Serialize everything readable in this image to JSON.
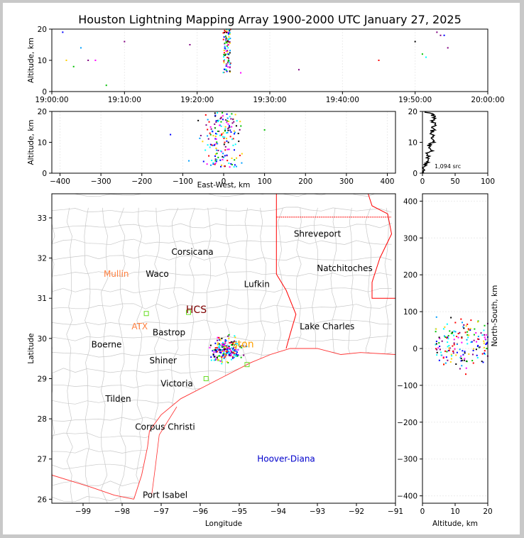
{
  "title": "Houston Lightning Mapping Array 1900-2000 UTC January 27, 2025",
  "chart_data": [
    {
      "id": "time_altitude",
      "type": "scatter",
      "ylabel": "Altitude, km",
      "xlabel": "",
      "xlim_minutes": [
        0,
        60
      ],
      "xtick_labels": [
        "19:00:00",
        "19:10:00",
        "19:20:00",
        "19:30:00",
        "19:40:00",
        "19:50:00",
        "20:00:00"
      ],
      "xtick_values": [
        0,
        10,
        20,
        30,
        40,
        50,
        60
      ],
      "ylim": [
        0,
        20
      ],
      "yticks": [
        0,
        10,
        20
      ],
      "sparse_points": [
        [
          1.5,
          19
        ],
        [
          2,
          10
        ],
        [
          3,
          8
        ],
        [
          4,
          14
        ],
        [
          5,
          10
        ],
        [
          6,
          10
        ],
        [
          7.5,
          2
        ],
        [
          10,
          16
        ],
        [
          19,
          15
        ],
        [
          26,
          6
        ],
        [
          34,
          7
        ],
        [
          45,
          10
        ],
        [
          50,
          16
        ],
        [
          51,
          12
        ],
        [
          51.5,
          11
        ],
        [
          53,
          19
        ],
        [
          53.5,
          18
        ],
        [
          54,
          18
        ],
        [
          54.5,
          14
        ]
      ],
      "cluster": {
        "minute_range": [
          23.6,
          24.6
        ],
        "alt_range": [
          6,
          20
        ]
      }
    },
    {
      "id": "east_west_altitude",
      "type": "scatter",
      "xlabel": "East-West, km",
      "ylabel": "Altitude, km",
      "xlim": [
        -420,
        420
      ],
      "xticks": [
        -400,
        -300,
        -200,
        -100,
        0,
        100,
        200,
        300,
        400
      ],
      "ylim": [
        0,
        20
      ],
      "yticks": [
        0,
        10,
        20
      ],
      "cluster": {
        "x_range": [
          -70,
          60
        ],
        "alt_range": [
          2,
          20
        ]
      }
    },
    {
      "id": "altitude_histogram",
      "type": "line",
      "xlim": [
        0,
        100
      ],
      "xticks": [
        0,
        50,
        100
      ],
      "ylim": [
        0,
        20
      ],
      "yticks": [
        0,
        10,
        20
      ],
      "annotation": "1,094 src",
      "alt": [
        0,
        1,
        2,
        3,
        4,
        5,
        6,
        7,
        8,
        9,
        10,
        11,
        12,
        13,
        14,
        15,
        16,
        17,
        18,
        19,
        20
      ],
      "count": [
        0,
        2,
        3,
        5,
        8,
        10,
        6,
        12,
        14,
        9,
        16,
        13,
        18,
        11,
        17,
        15,
        19,
        14,
        18,
        16,
        4
      ]
    },
    {
      "id": "plan_view",
      "type": "map",
      "xlabel": "Longitude",
      "ylabel": "Latitude",
      "xlim": [
        -99.8,
        -91
      ],
      "ylim": [
        25.9,
        33.6
      ],
      "xticks": [
        -99,
        -98,
        -97,
        -96,
        -95,
        -94,
        -93,
        -92,
        -91
      ],
      "yticks": [
        26,
        27,
        28,
        29,
        30,
        31,
        32,
        33
      ],
      "cities": [
        {
          "name": "Shreveport",
          "lon": -93.0,
          "lat": 32.6,
          "color": "#000000"
        },
        {
          "name": "Corsicana",
          "lon": -96.2,
          "lat": 32.15,
          "color": "#000000"
        },
        {
          "name": "Natchitoches",
          "lon": -92.3,
          "lat": 31.75,
          "color": "#000000"
        },
        {
          "name": "Mullin",
          "lon": -98.15,
          "lat": 31.6,
          "color": "#ff8040"
        },
        {
          "name": "Waco",
          "lon": -97.1,
          "lat": 31.6,
          "color": "#000000"
        },
        {
          "name": "Lufkin",
          "lon": -94.55,
          "lat": 31.35,
          "color": "#000000"
        },
        {
          "name": "HCS",
          "lon": -96.1,
          "lat": 30.7,
          "color": "#800000"
        },
        {
          "name": "ATX",
          "lon": -97.55,
          "lat": 30.3,
          "color": "#ff8040"
        },
        {
          "name": "Bastrop",
          "lon": -96.8,
          "lat": 30.15,
          "color": "#000000"
        },
        {
          "name": "Lake Charles",
          "lon": -92.75,
          "lat": 30.3,
          "color": "#000000"
        },
        {
          "name": "Boerne",
          "lon": -98.4,
          "lat": 29.85,
          "color": "#000000"
        },
        {
          "name": "Houston",
          "lon": -94.9,
          "lat": 29.85,
          "color": "#ffa000",
          "partial": "ston"
        },
        {
          "name": "Shiner",
          "lon": -96.95,
          "lat": 29.45,
          "color": "#000000"
        },
        {
          "name": "Victoria",
          "lon": -96.6,
          "lat": 28.88,
          "color": "#000000"
        },
        {
          "name": "Tilden",
          "lon": -98.1,
          "lat": 28.5,
          "color": "#000000"
        },
        {
          "name": "Corpus Christi",
          "lon": -96.9,
          "lat": 27.8,
          "color": "#000000"
        },
        {
          "name": "Hoover-Diana",
          "lon": -93.8,
          "lat": 27.0,
          "color": "#0000cc"
        },
        {
          "name": "Port Isabel",
          "lon": -96.9,
          "lat": 26.1,
          "color": "#000000"
        }
      ],
      "sensors": [
        [
          -97.38,
          30.62
        ],
        [
          -96.3,
          30.65
        ],
        [
          -95.85,
          29.0
        ],
        [
          -94.8,
          29.35
        ],
        [
          -95.5,
          29.5
        ]
      ],
      "cluster": {
        "lon_range": [
          -95.95,
          -94.75
        ],
        "lat_range": [
          29.3,
          30.15
        ]
      }
    },
    {
      "id": "altitude_north_south",
      "type": "scatter",
      "xlabel": "Altitude, km",
      "ylabel": "North-South, km",
      "xlim": [
        0,
        20
      ],
      "xticks": [
        0,
        10,
        20
      ],
      "ylim": [
        -420,
        420
      ],
      "yticks": [
        -400,
        -300,
        -200,
        -100,
        0,
        100,
        200,
        300,
        400
      ],
      "cluster": {
        "alt_range": [
          4,
          20
        ],
        "ns_range": [
          -90,
          110
        ]
      }
    }
  ],
  "colors": [
    "#0000ff",
    "#00a0ff",
    "#00c000",
    "#00ffff",
    "#ff00ff",
    "#ff0000",
    "#800080",
    "#000000",
    "#ffd000"
  ]
}
